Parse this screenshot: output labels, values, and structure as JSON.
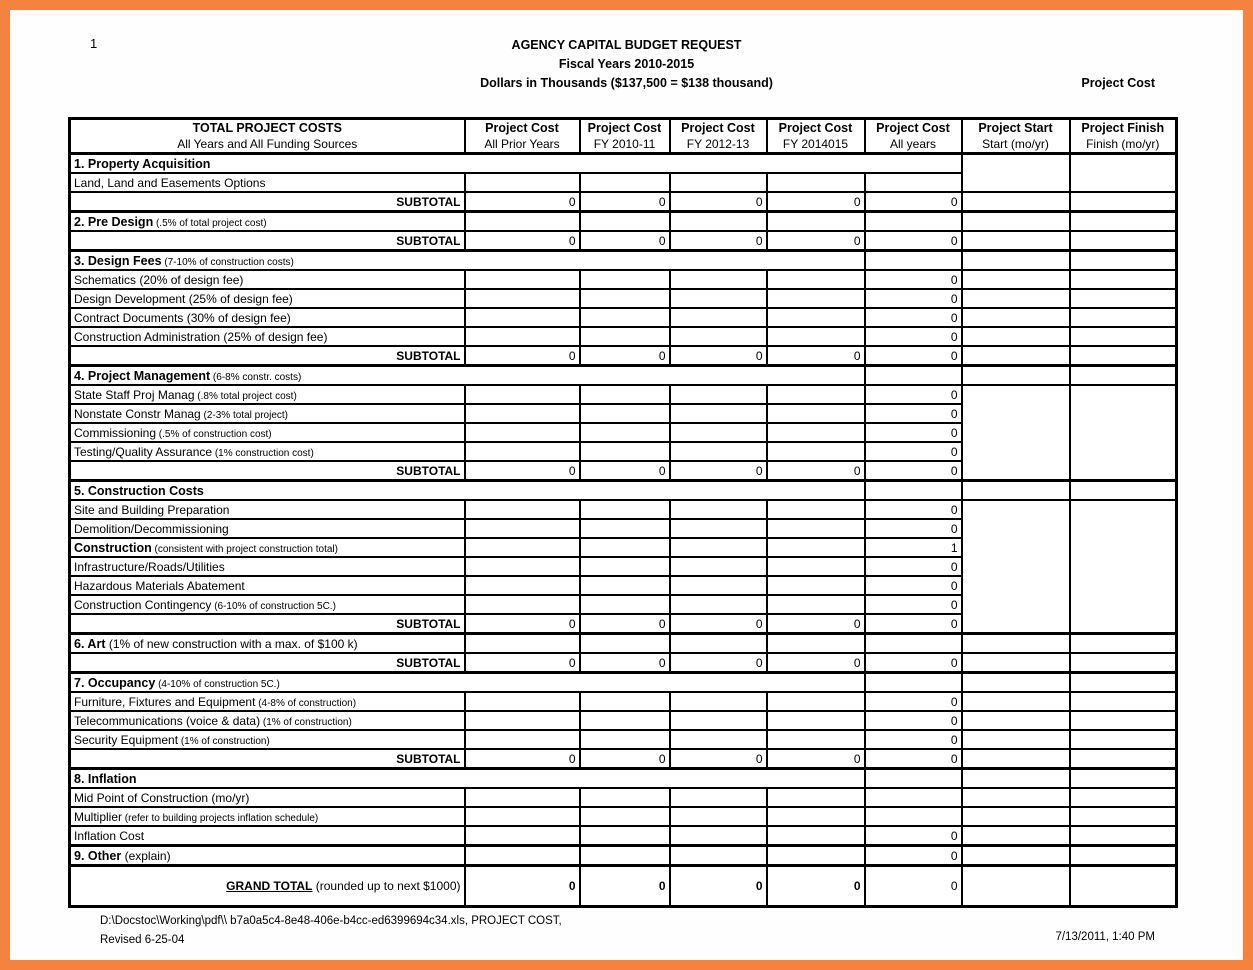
{
  "page_number": "1",
  "header": {
    "title": "AGENCY CAPITAL BUDGET REQUEST",
    "subtitle": "Fiscal Years 2010-2015",
    "subtitle2": "Dollars in Thousands ($137,500 = $138 thousand)",
    "corner_label": "Project Cost"
  },
  "colors": {
    "accent_border": "#F5823F",
    "cell_gray": "#C0C0C0"
  },
  "table": {
    "subtotal_label": "SUBTOTAL",
    "header_cols": [
      {
        "line1": "TOTAL PROJECT COSTS",
        "line2": "All Years and All Funding Sources"
      },
      {
        "line1": "Project Cost",
        "line2": "All Prior Years"
      },
      {
        "line1": "Project Cost",
        "line2": "FY 2010-11"
      },
      {
        "line1": "Project Cost",
        "line2": "FY 2012-13"
      },
      {
        "line1": "Project Cost",
        "line2": "FY 2014015"
      },
      {
        "line1": "Project Cost",
        "line2": "All years"
      },
      {
        "line1": "Project Start",
        "line2": "Start (mo/yr)"
      },
      {
        "line1": "Project Finish",
        "line2": "Finish (mo/yr)"
      }
    ],
    "rows": [
      {
        "name": "property-acquisition",
        "type": "section",
        "span": "full",
        "label": "1. Property Acquisition",
        "bold": true,
        "heavyTop": true,
        "right": "span",
        "rightRows": 2
      },
      {
        "name": "land-easements",
        "type": "detail",
        "span": "cells",
        "label": "Land, Land and Easements Options",
        "indent": true,
        "values": [
          "",
          "",
          "",
          "",
          ""
        ],
        "right": "skip"
      },
      {
        "name": "subtotal-1",
        "type": "subtotal",
        "span": "cells",
        "values": [
          "0",
          "0",
          "0",
          "0",
          "0"
        ],
        "right": "cellgray"
      },
      {
        "name": "pre-design",
        "type": "section",
        "span": "cells",
        "label": "2. Pre Design",
        "note": "(.5% of total project cost)",
        "noteSmall": true,
        "bold": true,
        "heavyTop": true,
        "values": [
          "",
          "",
          "",
          "",
          ""
        ],
        "right": "cell"
      },
      {
        "name": "subtotal-2",
        "type": "subtotal",
        "span": "cells",
        "values": [
          "0",
          "0",
          "0",
          "0",
          "0"
        ],
        "right": "cellgray"
      },
      {
        "name": "design-fees",
        "type": "section",
        "span": "c5",
        "label": "3. Design Fees",
        "note": "(7-10% of construction costs)",
        "noteSmall": true,
        "bold": true,
        "heavyTop": true,
        "right": "cellgray"
      },
      {
        "name": "schematics",
        "type": "detail",
        "span": "cells",
        "label": "Schematics (20% of design fee)",
        "indent": true,
        "values": [
          "",
          "",
          "",
          "",
          "0"
        ],
        "right": "cell"
      },
      {
        "name": "design-development",
        "type": "detail",
        "span": "cells",
        "label": "Design Development (25% of design fee)",
        "indent": true,
        "values": [
          "",
          "",
          "",
          "",
          "0"
        ],
        "right": "cell"
      },
      {
        "name": "contract-documents",
        "type": "detail",
        "span": "cells",
        "label": "Contract Documents (30% of design fee)",
        "indent": true,
        "values": [
          "",
          "",
          "",
          "",
          "0"
        ],
        "right": "cell"
      },
      {
        "name": "construction-administration",
        "type": "detail",
        "span": "cells",
        "label": "Construction Administration (25% of design fee)",
        "indent": true,
        "values": [
          "",
          "",
          "",
          "",
          "0"
        ],
        "right": "cell"
      },
      {
        "name": "subtotal-3",
        "type": "subtotal",
        "span": "cells",
        "values": [
          "0",
          "0",
          "0",
          "0",
          "0"
        ],
        "right": "cellgray"
      },
      {
        "name": "project-management",
        "type": "section",
        "span": "c5",
        "label": "4. Project Management",
        "note": "(6-8% constr. costs)",
        "noteSmall": true,
        "bold": true,
        "heavyTop": true,
        "right": "cell"
      },
      {
        "name": "state-staff-proj-manag",
        "type": "detail",
        "span": "cells",
        "label": "State Staff Proj Manag",
        "note": "(.8% total project cost)",
        "noteSmall": true,
        "indent": true,
        "values": [
          "",
          "",
          "",
          "",
          "0"
        ],
        "right": "span",
        "rightRows": 5
      },
      {
        "name": "nonstate-constr-manag",
        "type": "detail",
        "span": "cells",
        "label": "Nonstate Constr Manag",
        "note": "(2-3% total project)",
        "noteSmall": true,
        "indent": true,
        "values": [
          "",
          "",
          "",
          "",
          "0"
        ],
        "right": "skip"
      },
      {
        "name": "commissioning",
        "type": "detail",
        "span": "cells",
        "label": "Commissioning",
        "note": "(.5% of construction cost)",
        "noteSmall": true,
        "indent": true,
        "values": [
          "",
          "",
          "",
          "",
          "0"
        ],
        "right": "skip"
      },
      {
        "name": "testing-quality-assurance",
        "type": "detail",
        "span": "cells",
        "label": "Testing/Quality Assurance",
        "note": "(1% construction cost)",
        "noteSmall": true,
        "indent": true,
        "values": [
          "",
          "",
          "",
          "",
          "0"
        ],
        "right": "skip"
      },
      {
        "name": "subtotal-4",
        "type": "subtotal",
        "span": "cells",
        "values": [
          "0",
          "0",
          "0",
          "0",
          "0"
        ],
        "right": "skip"
      },
      {
        "name": "construction-costs",
        "type": "section",
        "span": "c5",
        "label": "5. Construction Costs",
        "bold": true,
        "heavyTop": true,
        "right": "cell"
      },
      {
        "name": "site-building-preparation",
        "type": "detail",
        "span": "cells",
        "label": "Site and Building Preparation",
        "indent": true,
        "values": [
          "",
          "",
          "",
          "",
          "0"
        ],
        "right": "span",
        "rightRows": 7
      },
      {
        "name": "demolition-decommissioning",
        "type": "detail",
        "span": "cells",
        "label": "Demolition/Decommissioning",
        "indent": true,
        "values": [
          "",
          "",
          "",
          "",
          "0"
        ],
        "right": "skip"
      },
      {
        "name": "construction",
        "type": "detail",
        "span": "cells",
        "label": "Construction",
        "note": "(consistent with project construction total)",
        "noteSmall": true,
        "bold": true,
        "indent": true,
        "values": [
          "",
          "",
          "",
          "",
          "1"
        ],
        "right": "skip"
      },
      {
        "name": "infrastructure-roads-utilities",
        "type": "detail",
        "span": "cells",
        "label": "Infrastructure/Roads/Utilities",
        "indent": true,
        "values": [
          "",
          "",
          "",
          "",
          "0"
        ],
        "right": "skip"
      },
      {
        "name": "hazardous-materials-abatement",
        "type": "detail",
        "span": "cells",
        "label": "Hazardous Materials Abatement",
        "indent": true,
        "values": [
          "",
          "",
          "",
          "",
          "0"
        ],
        "right": "skip"
      },
      {
        "name": "construction-contingency",
        "type": "detail",
        "span": "cells",
        "label": "Construction Contingency",
        "note": "(6-10% of construction 5C.)",
        "noteSmall": true,
        "indent": true,
        "values": [
          "",
          "",
          "",
          "",
          "0"
        ],
        "right": "skip"
      },
      {
        "name": "subtotal-5",
        "type": "subtotal",
        "span": "cells",
        "values": [
          "0",
          "0",
          "0",
          "0",
          "0"
        ],
        "right": "skip"
      },
      {
        "name": "art",
        "type": "section",
        "span": "cells",
        "label": "6. Art",
        "note": "(1% of new construction with a max. of $100 k)",
        "bold": true,
        "heavyTop": true,
        "values": [
          "",
          "",
          "",
          "",
          ""
        ],
        "right": "cell"
      },
      {
        "name": "subtotal-6",
        "type": "subtotal",
        "span": "cells",
        "values": [
          "0",
          "0",
          "0",
          "0",
          "0"
        ],
        "right": "cellgray"
      },
      {
        "name": "occupancy",
        "type": "section",
        "span": "c5",
        "label": "7. Occupancy",
        "note": "(4-10% of construction 5C.)",
        "noteSmall": true,
        "bold": true,
        "heavyTop": true,
        "right": "cellgray"
      },
      {
        "name": "furniture-fixtures-equipment",
        "type": "detail",
        "span": "cells",
        "label": "Furniture, Fixtures and Equipment",
        "note": "(4-8% of construction)",
        "noteSmall": true,
        "indent": true,
        "values": [
          "",
          "",
          "",
          "",
          "0"
        ],
        "right": "cell"
      },
      {
        "name": "telecommunications",
        "type": "detail",
        "span": "cells",
        "label": "Telecommunications (voice & data)",
        "note": "(1% of construction)",
        "noteSmall": true,
        "indent": true,
        "values": [
          "",
          "",
          "",
          "",
          "0"
        ],
        "right": "cell"
      },
      {
        "name": "security-equipment",
        "type": "detail",
        "span": "cells",
        "label": "Security Equipment",
        "note": "(1% of construction)",
        "noteSmall": true,
        "indent": true,
        "values": [
          "",
          "",
          "",
          "",
          "0"
        ],
        "right": "cell"
      },
      {
        "name": "subtotal-7",
        "type": "subtotal",
        "span": "cells",
        "values": [
          "0",
          "0",
          "0",
          "0",
          "0"
        ],
        "right": "cellgray"
      },
      {
        "name": "inflation",
        "type": "section",
        "span": "c5",
        "label": "8. Inflation",
        "bold": true,
        "heavyTop": true,
        "right": "cellgray"
      },
      {
        "name": "mid-point-of-construction",
        "type": "detail",
        "span": "cells",
        "label": "Mid Point of Construction (mo/yr)",
        "indent": true,
        "values": [
          "",
          "",
          "",
          "",
          ""
        ],
        "gray": [
          0,
          4
        ],
        "right": "cellgray"
      },
      {
        "name": "multiplier",
        "type": "detail",
        "span": "cells",
        "label": "Multiplier",
        "note": "(refer to building projects inflation schedule)",
        "noteSmall": true,
        "indent": true,
        "values": [
          "",
          "",
          "",
          "",
          ""
        ],
        "gray": [
          0,
          4
        ],
        "right": "cellgray"
      },
      {
        "name": "inflation-cost",
        "type": "detail",
        "span": "cells",
        "label": "Inflation Cost",
        "indent": true,
        "values": [
          "",
          "",
          "",
          "",
          "0"
        ],
        "gray": [
          0
        ],
        "right": "cellgray"
      },
      {
        "name": "other",
        "type": "section",
        "span": "cells",
        "label": "9. Other",
        "note": "(explain)",
        "bold": true,
        "heavyTop": true,
        "values": [
          "",
          "",
          "",
          "",
          "0"
        ],
        "right": "cell"
      },
      {
        "name": "grand-total",
        "type": "grand",
        "span": "cells",
        "label": "GRAND TOTAL",
        "note": "(rounded up to next  $1000)",
        "heavyTop": true,
        "values": [
          "0",
          "0",
          "0",
          "0",
          "0"
        ],
        "vbold": [
          1,
          1,
          1,
          1,
          0
        ],
        "right": "cellgray"
      }
    ]
  },
  "footer": {
    "path_line": "D:\\Docstoc\\Working\\pdf\\\\ b7a0a5c4-8e48-406e-b4cc-ed6399694c34.xls,  PROJECT COST,",
    "revised_line": "Revised 6-25-04",
    "datetime": "7/13/2011, 1:40 PM"
  }
}
